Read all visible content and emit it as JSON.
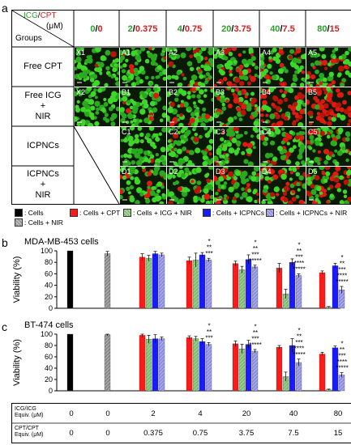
{
  "panel_a": {
    "letter": "a",
    "corner_icg": "ICG",
    "corner_slash": "/",
    "corner_cpt": "CPT",
    "corner_unit": "(μM)",
    "corner_groups": "Groups",
    "dose_headers": [
      {
        "icg": "0",
        "cpt": "0"
      },
      {
        "icg": "2",
        "cpt": "0.375"
      },
      {
        "icg": "4",
        "cpt": "0.75"
      },
      {
        "icg": "20",
        "cpt": "3.75"
      },
      {
        "icg": "40",
        "cpt": "7.5"
      },
      {
        "icg": "80",
        "cpt": "15"
      }
    ],
    "row_labels": [
      "Free CPT",
      "Free ICG\n+\nNIR",
      "ICPNCs",
      "ICPNCs\n+\nNIR"
    ],
    "tile_labels": [
      [
        "X1",
        "A1",
        "A2",
        "A3",
        "A4",
        "A5"
      ],
      [
        "X2",
        "B1",
        "B2",
        "B3",
        "B4",
        "B5"
      ],
      [
        "",
        "C1",
        "C2",
        "C3",
        "C4",
        "C5"
      ],
      [
        "",
        "D1",
        "D2",
        "D3",
        "D4",
        "D5"
      ]
    ],
    "colors": {
      "icg_green": "#2e9b2e",
      "cpt_red": "#d21f1f"
    }
  },
  "legend": [
    {
      "label": ": Cells",
      "color": "#000000"
    },
    {
      "label": ": Cells + CPT",
      "color": "#ff1a1a"
    },
    {
      "label": ": Cells + ICG + NIR",
      "color": "#7fbf6f"
    },
    {
      "label": ": Cells + ICPNCs",
      "color": "#1a1aff"
    },
    {
      "label": ": Cells + ICPNCs + NIR",
      "color": "#8f8fe0"
    },
    {
      "label": ": Cells + NIR",
      "color": "#9a9a9a"
    }
  ],
  "chart_data": [
    {
      "type": "bar",
      "panel": "b",
      "title": "MDA-MB-453 cells",
      "ylabel": "Viability (%)",
      "ylim": [
        0,
        100
      ],
      "yticks": [
        0,
        20,
        40,
        60,
        80,
        100
      ],
      "groups": [
        {
          "bars": [
            {
              "series": "Cells",
              "value": 100,
              "err": 0
            }
          ]
        },
        {
          "bars": [
            {
              "series": "Cells + NIR",
              "value": 95,
              "err": 4
            }
          ]
        },
        {
          "bars": [
            {
              "series": "Cells + CPT",
              "value": 89,
              "err": 6
            },
            {
              "series": "Cells + ICG + NIR",
              "value": 87,
              "err": 5
            },
            {
              "series": "Cells + ICPNCs",
              "value": 95,
              "err": 4
            },
            {
              "series": "Cells + ICPNCs + NIR",
              "value": 93,
              "err": 3
            }
          ],
          "sig": []
        },
        {
          "bars": [
            {
              "series": "Cells + CPT",
              "value": 83,
              "err": 6
            },
            {
              "series": "Cells + ICG + NIR",
              "value": 84,
              "err": 12
            },
            {
              "series": "Cells + ICPNCs",
              "value": 93,
              "err": 4
            },
            {
              "series": "Cells + ICPNCs + NIR",
              "value": 84,
              "err": 3
            }
          ],
          "sig": [
            "*",
            "**",
            "***"
          ]
        },
        {
          "bars": [
            {
              "series": "Cells + CPT",
              "value": 78,
              "err": 4
            },
            {
              "series": "Cells + ICG + NIR",
              "value": 67,
              "err": 6
            },
            {
              "series": "Cells + ICPNCs",
              "value": 85,
              "err": 8
            },
            {
              "series": "Cells + ICPNCs + NIR",
              "value": 72,
              "err": 3
            }
          ],
          "sig": [
            "*",
            "**",
            "***",
            "*****"
          ]
        },
        {
          "bars": [
            {
              "series": "Cells + CPT",
              "value": 70,
              "err": 8
            },
            {
              "series": "Cells + ICG + NIR",
              "value": 25,
              "err": 8
            },
            {
              "series": "Cells + ICPNCs",
              "value": 80,
              "err": 6
            },
            {
              "series": "Cells + ICPNCs + NIR",
              "value": 57,
              "err": 3
            }
          ],
          "sig": [
            "*",
            "**",
            "***",
            "****",
            "*****"
          ]
        },
        {
          "bars": [
            {
              "series": "Cells + CPT",
              "value": 62,
              "err": 3
            },
            {
              "series": "Cells + ICG + NIR",
              "value": 2,
              "err": 1
            },
            {
              "series": "Cells + ICPNCs",
              "value": 74,
              "err": 4
            },
            {
              "series": "Cells + ICPNCs + NIR",
              "value": 32,
              "err": 6
            }
          ],
          "sig": [
            "*",
            "**",
            "***",
            "****",
            "*****"
          ]
        }
      ]
    },
    {
      "type": "bar",
      "panel": "c",
      "title": "BT-474 cells",
      "ylabel": "Viability (%)",
      "ylim": [
        0,
        100
      ],
      "yticks": [
        0,
        20,
        40,
        60,
        80,
        100
      ],
      "groups": [
        {
          "bars": [
            {
              "series": "Cells",
              "value": 100,
              "err": 0
            }
          ]
        },
        {
          "bars": [
            {
              "series": "Cells + NIR",
              "value": 99,
              "err": 2
            }
          ]
        },
        {
          "bars": [
            {
              "series": "Cells + CPT",
              "value": 98,
              "err": 3
            },
            {
              "series": "Cells + ICG + NIR",
              "value": 91,
              "err": 7
            },
            {
              "series": "Cells + ICPNCs",
              "value": 92,
              "err": 7
            },
            {
              "series": "Cells + ICPNCs + NIR",
              "value": 92,
              "err": 3
            }
          ],
          "sig": []
        },
        {
          "bars": [
            {
              "series": "Cells + CPT",
              "value": 94,
              "err": 3
            },
            {
              "series": "Cells + ICG + NIR",
              "value": 92,
              "err": 4
            },
            {
              "series": "Cells + ICPNCs",
              "value": 87,
              "err": 5
            },
            {
              "series": "Cells + ICPNCs + NIR",
              "value": 82,
              "err": 3
            }
          ],
          "sig": [
            "*",
            "**",
            "***"
          ]
        },
        {
          "bars": [
            {
              "series": "Cells + CPT",
              "value": 83,
              "err": 5
            },
            {
              "series": "Cells + ICG + NIR",
              "value": 74,
              "err": 8
            },
            {
              "series": "Cells + ICPNCs",
              "value": 82,
              "err": 7
            },
            {
              "series": "Cells + ICPNCs + NIR",
              "value": 70,
              "err": 3
            }
          ],
          "sig": [
            "*",
            "**",
            "***",
            "*****"
          ]
        },
        {
          "bars": [
            {
              "series": "Cells + CPT",
              "value": 77,
              "err": 3
            },
            {
              "series": "Cells + ICG + NIR",
              "value": 25,
              "err": 8
            },
            {
              "series": "Cells + ICPNCs",
              "value": 80,
              "err": 12
            },
            {
              "series": "Cells + ICPNCs + NIR",
              "value": 50,
              "err": 6
            }
          ],
          "sig": [
            "*",
            "**",
            "***",
            "****",
            "*****"
          ]
        },
        {
          "bars": [
            {
              "series": "Cells + CPT",
              "value": 65,
              "err": 3
            },
            {
              "series": "Cells + ICG + NIR",
              "value": 2,
              "err": 1
            },
            {
              "series": "Cells + ICPNCs",
              "value": 76,
              "err": 3
            },
            {
              "series": "Cells + ICPNCs + NIR",
              "value": 28,
              "err": 4
            }
          ],
          "sig": [
            "*",
            "**",
            "***",
            "****",
            "*****"
          ]
        }
      ]
    }
  ],
  "dose_table": {
    "row1_label": [
      "ICG/ICG",
      "Equiv. (μM)"
    ],
    "row2_label": [
      "CPT/CPT",
      "Equiv. (μM)"
    ],
    "row1": [
      "0",
      "0",
      "2",
      "4",
      "20",
      "40",
      "80"
    ],
    "row2": [
      "0",
      "0",
      "0.375",
      "0.75",
      "3.75",
      "7.5",
      "15"
    ]
  }
}
